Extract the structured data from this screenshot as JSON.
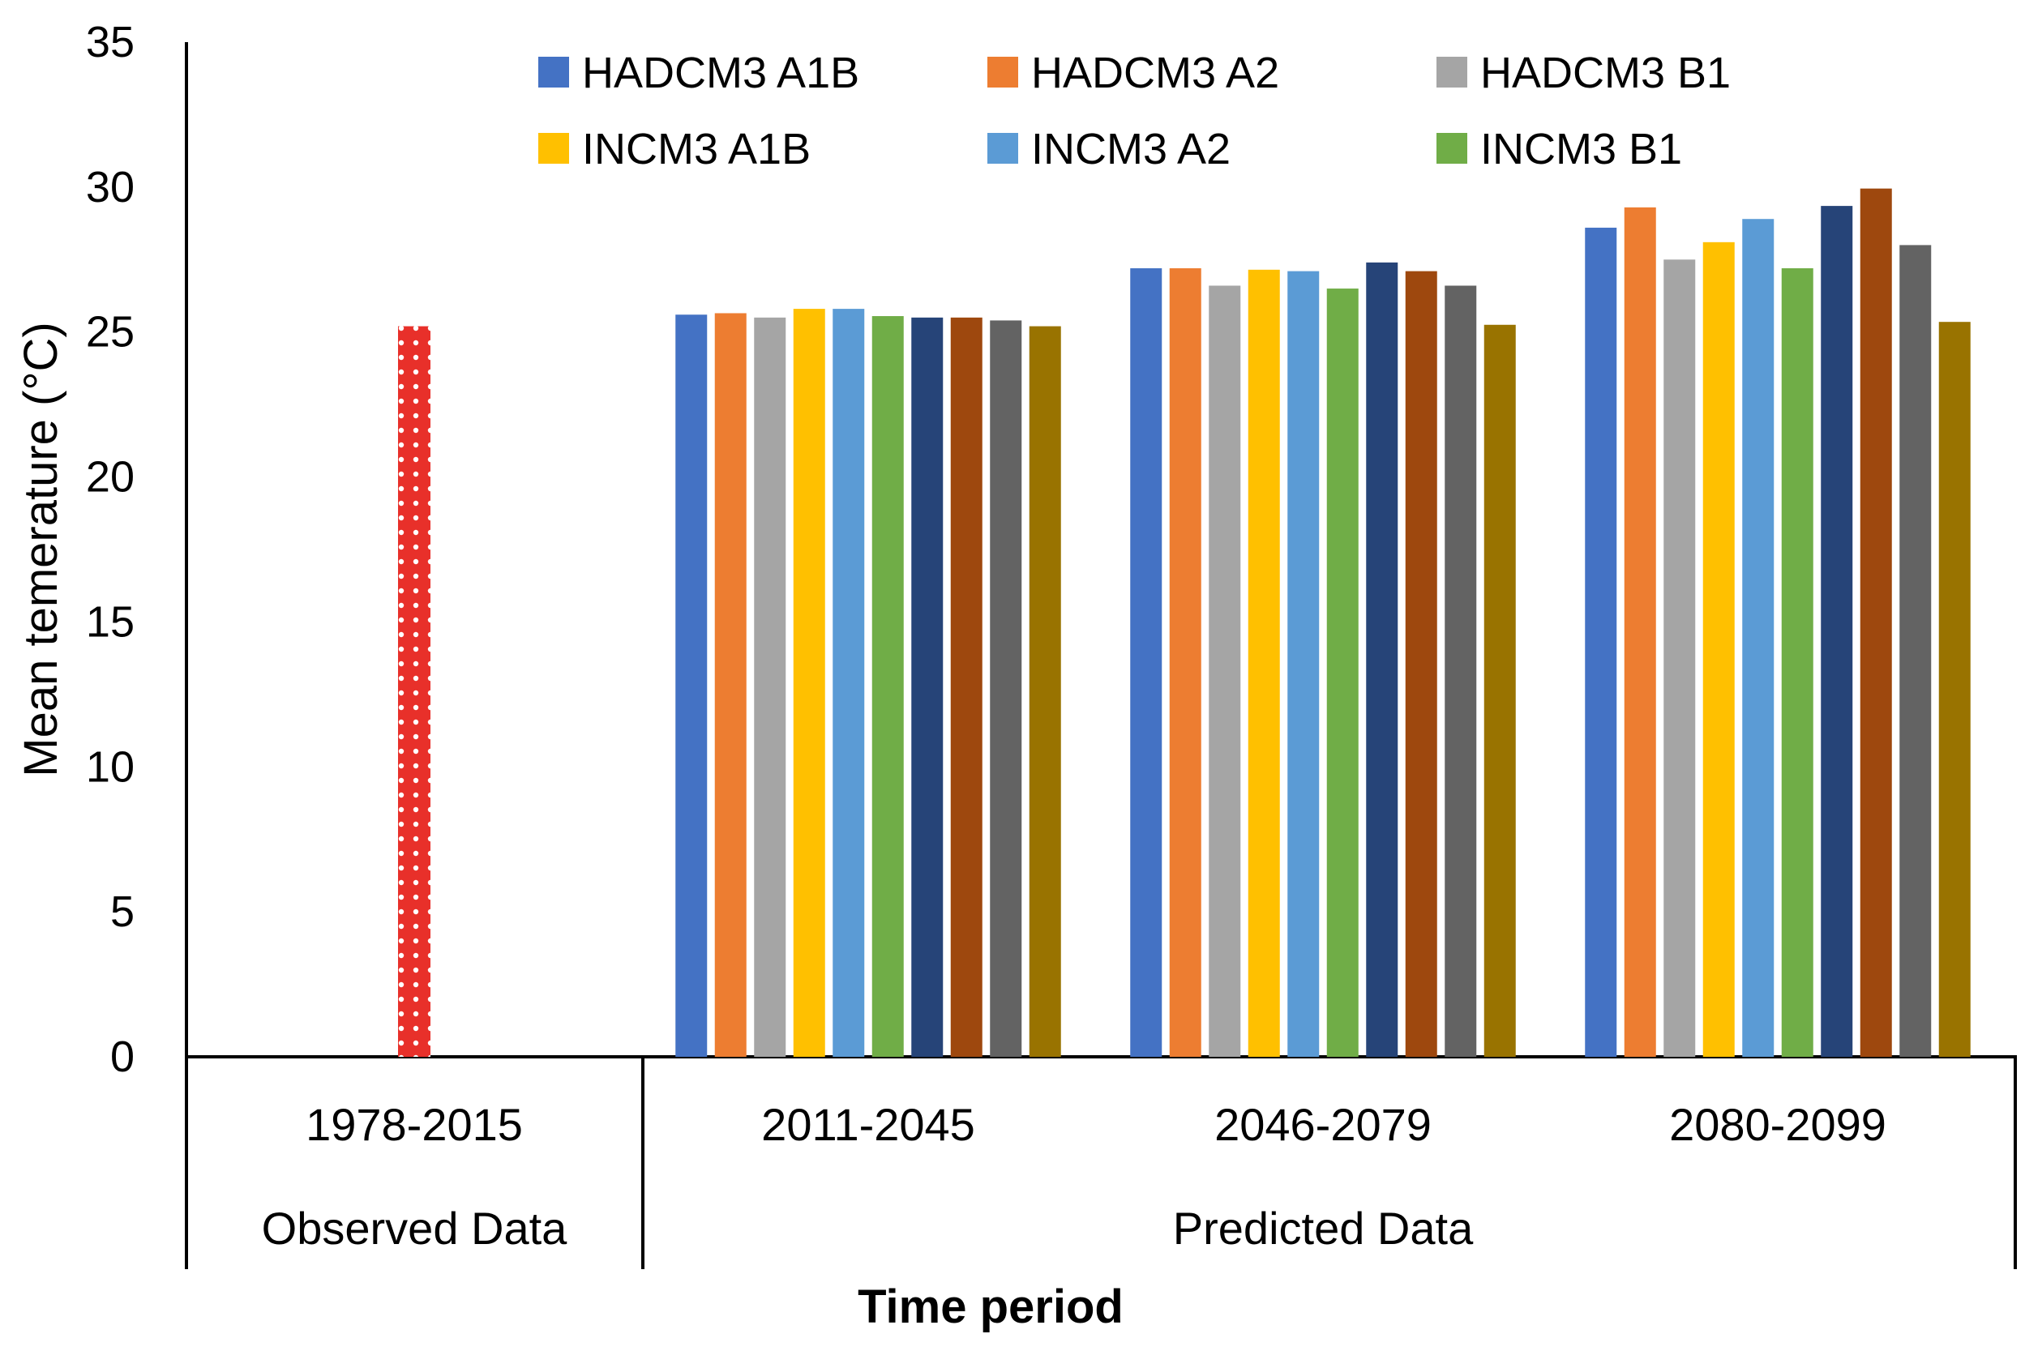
{
  "chart_data": {
    "type": "bar",
    "title": "",
    "xlabel": "Time period",
    "ylabel": "Mean temerature (°C)",
    "ylim": [
      0,
      35
    ],
    "yticks": [
      0,
      5,
      10,
      15,
      20,
      25,
      30,
      35
    ],
    "grid": false,
    "legend_position": "top",
    "observed": {
      "group_label": "Observed Data",
      "category": "1978-2015",
      "value": 25.2,
      "color": "#e8302a",
      "pattern": "dotted"
    },
    "predicted": {
      "group_label": "Predicted Data",
      "categories": [
        "2011-2045",
        "2046-2079",
        "2080-2099"
      ]
    },
    "legend": [
      {
        "name": "HADCM3 A1B",
        "color": "#4472C4"
      },
      {
        "name": "HADCM3 A2",
        "color": "#ED7D31"
      },
      {
        "name": "HADCM3 B1",
        "color": "#A5A5A5"
      },
      {
        "name": "INCM3 A1B",
        "color": "#FFC000"
      },
      {
        "name": "INCM3 A2",
        "color": "#5B9BD5"
      },
      {
        "name": "INCM3 B1",
        "color": "#70AD47"
      }
    ],
    "series": [
      {
        "name": "HADCM3 A1B",
        "color": "#4472C4",
        "values": [
          25.6,
          27.2,
          28.6
        ]
      },
      {
        "name": "HADCM3 A2",
        "color": "#ED7D31",
        "values": [
          25.65,
          27.2,
          29.3
        ]
      },
      {
        "name": "HADCM3 B1",
        "color": "#A5A5A5",
        "values": [
          25.5,
          26.6,
          27.5
        ]
      },
      {
        "name": "INCM3 A1B",
        "color": "#FFC000",
        "values": [
          25.8,
          27.15,
          28.1
        ]
      },
      {
        "name": "INCM3 A2",
        "color": "#5B9BD5",
        "values": [
          25.8,
          27.1,
          28.9
        ]
      },
      {
        "name": "INCM3 B1",
        "color": "#70AD47",
        "values": [
          25.55,
          26.5,
          27.2
        ]
      },
      {
        "name": "",
        "color": "#264478",
        "values": [
          25.5,
          27.4,
          29.35
        ]
      },
      {
        "name": "",
        "color": "#9E480E",
        "values": [
          25.5,
          27.1,
          29.95
        ]
      },
      {
        "name": "",
        "color": "#636363",
        "values": [
          25.4,
          26.6,
          28.0
        ]
      },
      {
        "name": "",
        "color": "#997300",
        "values": [
          25.2,
          25.25,
          25.35
        ]
      }
    ]
  }
}
